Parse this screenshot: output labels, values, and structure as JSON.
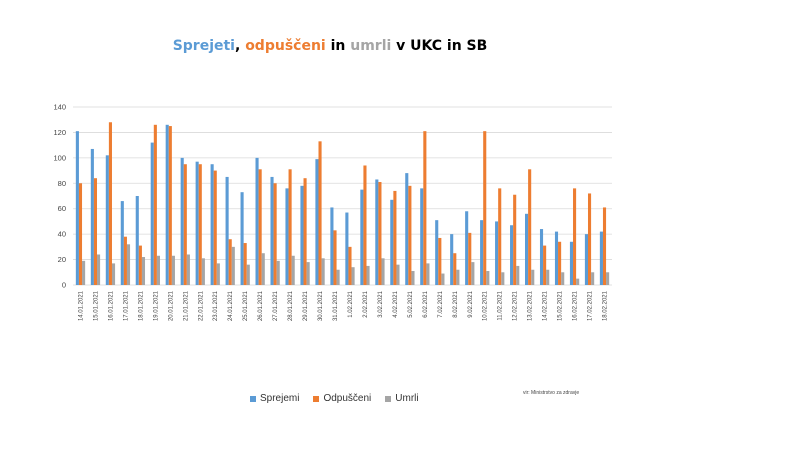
{
  "title_parts": {
    "p1": "Sprejeti",
    "p2": ", ",
    "p3": "odpuščeni",
    "p4": " in ",
    "p5": "umrli",
    "p6": " v UKC in SB"
  },
  "colors": {
    "sprejemi": "#5B9BD5",
    "odpusceni": "#ED7D31",
    "umrli": "#A5A5A5",
    "grid": "#D9D9D9"
  },
  "source": "vir: Ministrstvo za zdravje",
  "chart_data": {
    "type": "bar",
    "title": "Sprejeti, odpuščeni in umrli v UKC in SB",
    "xlabel": "",
    "ylabel": "",
    "ylim": [
      0,
      140
    ],
    "yticks": [
      0,
      20,
      40,
      60,
      80,
      100,
      120,
      140
    ],
    "grid": true,
    "legend_position": "bottom",
    "categories": [
      "14.01.2021",
      "15.01.2021",
      "16.01.2021",
      "17.01.2021",
      "18.01.2021",
      "19.01.2021",
      "20.01.2021",
      "21.01.2021",
      "22.01.2021",
      "23.01.2021",
      "24.01.2021",
      "25.01.2021",
      "26.01.2021",
      "27.01.2021",
      "28.01.2021",
      "29.01.2021",
      "30.01.2021",
      "31.01.2021",
      "1.02.2021",
      "2.02.2021",
      "3.02.2021",
      "4.02.2021",
      "5.02.2021",
      "6.02.2021",
      "7.02.2021",
      "8.02.2021",
      "9.02.2021",
      "10.02.2021",
      "11.02.2021",
      "12.02.2021",
      "13.02.2021",
      "14.02.2021",
      "15.02.2021",
      "16.02.2021",
      "17.02.2021",
      "18.02.2021"
    ],
    "series": [
      {
        "name": "Sprejemi",
        "values": [
          121,
          107,
          102,
          66,
          70,
          112,
          126,
          100,
          97,
          95,
          85,
          73,
          100,
          85,
          76,
          78,
          99,
          61,
          57,
          75,
          83,
          67,
          88,
          76,
          51,
          40,
          58,
          51,
          50,
          47,
          56,
          44,
          42,
          34,
          40,
          42
        ]
      },
      {
        "name": "Odpuščeni",
        "values": [
          80,
          84,
          128,
          38,
          31,
          126,
          125,
          95,
          95,
          90,
          36,
          33,
          91,
          80,
          91,
          84,
          113,
          43,
          30,
          94,
          81,
          74,
          78,
          121,
          37,
          25,
          41,
          121,
          76,
          71,
          91,
          31,
          34,
          76,
          72,
          61
        ]
      },
      {
        "name": "Umrli",
        "values": [
          19,
          24,
          17,
          32,
          22,
          23,
          23,
          24,
          21,
          17,
          30,
          16,
          25,
          19,
          23,
          18,
          21,
          12,
          14,
          15,
          21,
          16,
          11,
          17,
          9,
          12,
          18,
          11,
          10,
          15,
          12,
          12,
          10,
          5,
          10,
          10
        ]
      }
    ]
  }
}
